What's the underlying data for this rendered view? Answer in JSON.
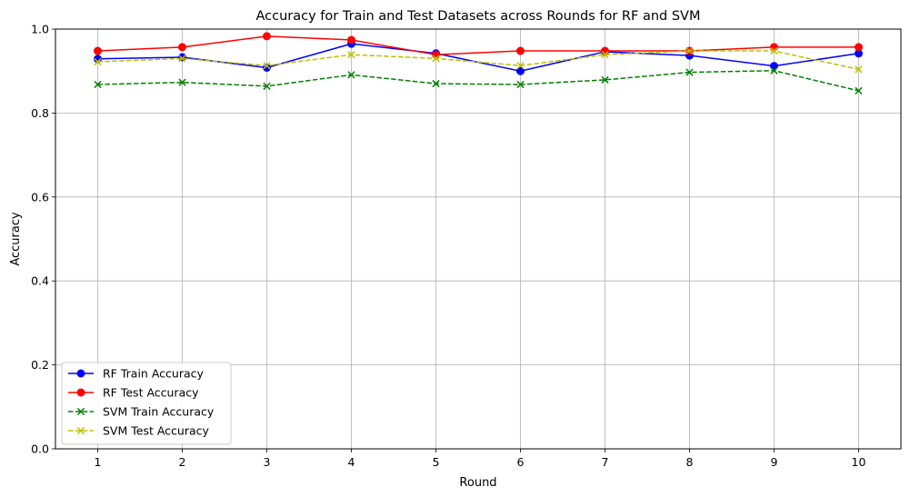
{
  "chart_data": {
    "type": "line",
    "title": "Accuracy for Train and Test Datasets across Rounds for RF and SVM",
    "xlabel": "Round",
    "ylabel": "Accuracy",
    "x": [
      1,
      2,
      3,
      4,
      5,
      6,
      7,
      8,
      9,
      10
    ],
    "xlim": [
      0.5,
      10.5
    ],
    "ylim": [
      0.0,
      1.0
    ],
    "yticks": [
      0.0,
      0.2,
      0.4,
      0.6,
      0.8,
      1.0
    ],
    "ytick_labels": [
      "0.0",
      "0.2",
      "0.4",
      "0.6",
      "0.8",
      "1.0"
    ],
    "xtick_labels": [
      "1",
      "2",
      "3",
      "4",
      "5",
      "6",
      "7",
      "8",
      "9",
      "10"
    ],
    "grid": true,
    "legend_position": "lower-left",
    "series": [
      {
        "name": "RF Train Accuracy",
        "color": "#0000ff",
        "linestyle": "solid",
        "marker": "circle",
        "values": [
          0.929,
          0.933,
          0.908,
          0.965,
          0.942,
          0.9,
          0.946,
          0.937,
          0.912,
          0.942
        ]
      },
      {
        "name": "RF Test Accuracy",
        "color": "#ff0000",
        "linestyle": "solid",
        "marker": "circle",
        "values": [
          0.948,
          0.957,
          0.983,
          0.974,
          0.939,
          0.948,
          0.948,
          0.948,
          0.957,
          0.957
        ]
      },
      {
        "name": "SVM Train Accuracy",
        "color": "#008000",
        "linestyle": "dashed",
        "marker": "x",
        "values": [
          0.868,
          0.873,
          0.864,
          0.891,
          0.87,
          0.868,
          0.879,
          0.897,
          0.901,
          0.853
        ]
      },
      {
        "name": "SVM Test Accuracy",
        "color": "#bfbf00",
        "linestyle": "dashed",
        "marker": "x",
        "values": [
          0.922,
          0.93,
          0.913,
          0.939,
          0.93,
          0.913,
          0.939,
          0.948,
          0.948,
          0.904
        ]
      }
    ]
  }
}
